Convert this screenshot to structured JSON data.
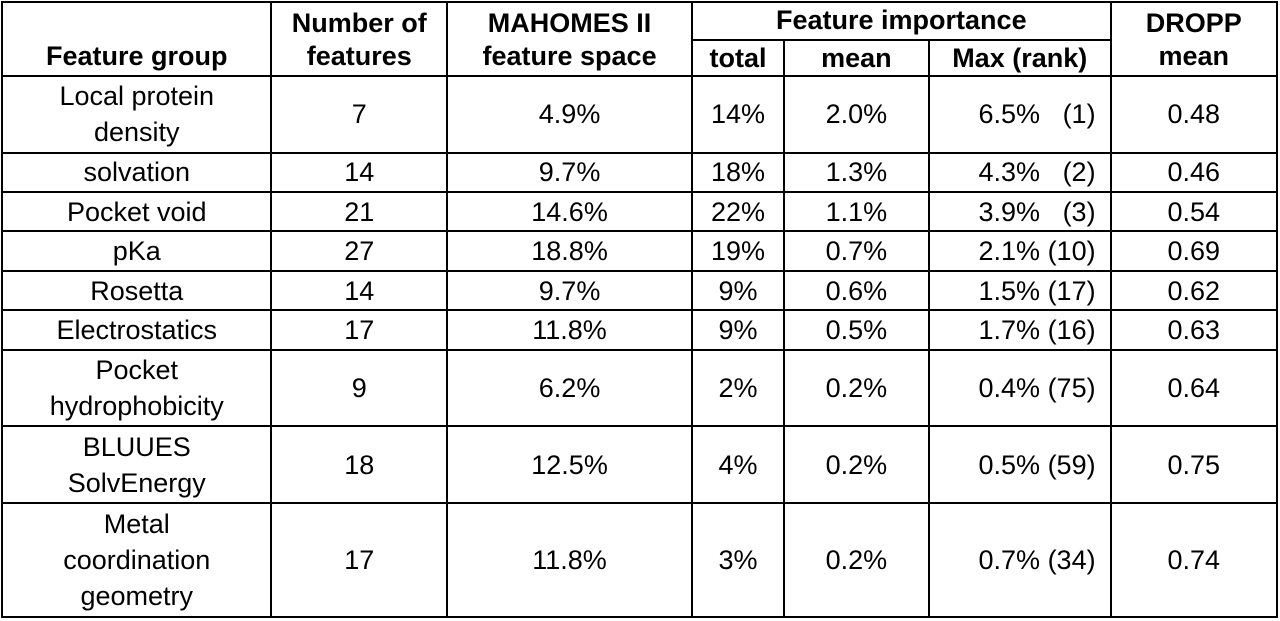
{
  "headers": {
    "feature_group": "Feature group",
    "number_of_features": [
      "Number of",
      "features"
    ],
    "mahomes_space": [
      "MAHOMES II",
      "feature space"
    ],
    "feature_importance": "Feature importance",
    "fi_total": "total",
    "fi_mean": "mean",
    "fi_max": "Max (rank)",
    "dropp_mean": [
      "DROPP",
      "mean"
    ]
  },
  "rows": [
    {
      "group": [
        "Local protein",
        "density"
      ],
      "n": "7",
      "space": "4.9%",
      "total": "14%",
      "mean": "2.0%",
      "max": "6.5%",
      "rank": "  (1)",
      "dropp": "0.48"
    },
    {
      "group": [
        "solvation"
      ],
      "n": "14",
      "space": "9.7%",
      "total": "18%",
      "mean": "1.3%",
      "max": "4.3%",
      "rank": "  (2)",
      "dropp": "0.46"
    },
    {
      "group": [
        "Pocket void"
      ],
      "n": "21",
      "space": "14.6%",
      "total": "22%",
      "mean": "1.1%",
      "max": "3.9%",
      "rank": "  (3)",
      "dropp": "0.54"
    },
    {
      "group": [
        "pKa"
      ],
      "n": "27",
      "space": "18.8%",
      "total": "19%",
      "mean": "0.7%",
      "max": "2.1%",
      "rank": "(10)",
      "dropp": "0.69"
    },
    {
      "group": [
        "Rosetta"
      ],
      "n": "14",
      "space": "9.7%",
      "total": "9%",
      "mean": "0.6%",
      "max": "1.5%",
      "rank": "(17)",
      "dropp": "0.62"
    },
    {
      "group": [
        "Electrostatics"
      ],
      "n": "17",
      "space": "11.8%",
      "total": "9%",
      "mean": "0.5%",
      "max": "1.7%",
      "rank": "(16)",
      "dropp": "0.63"
    },
    {
      "group": [
        "Pocket",
        "hydrophobicity"
      ],
      "n": "9",
      "space": "6.2%",
      "total": "2%",
      "mean": "0.2%",
      "max": "0.4%",
      "rank": "(75)",
      "dropp": "0.64"
    },
    {
      "group": [
        "BLUUES",
        "SolvEnergy"
      ],
      "n": "18",
      "space": "12.5%",
      "total": "4%",
      "mean": "0.2%",
      "max": "0.5%",
      "rank": "(59)",
      "dropp": "0.75"
    },
    {
      "group": [
        "Metal",
        "coordination",
        "geometry"
      ],
      "n": "17",
      "space": "11.8%",
      "total": "3%",
      "mean": "0.2%",
      "max": "0.7%",
      "rank": "(34)",
      "dropp": "0.74"
    }
  ]
}
